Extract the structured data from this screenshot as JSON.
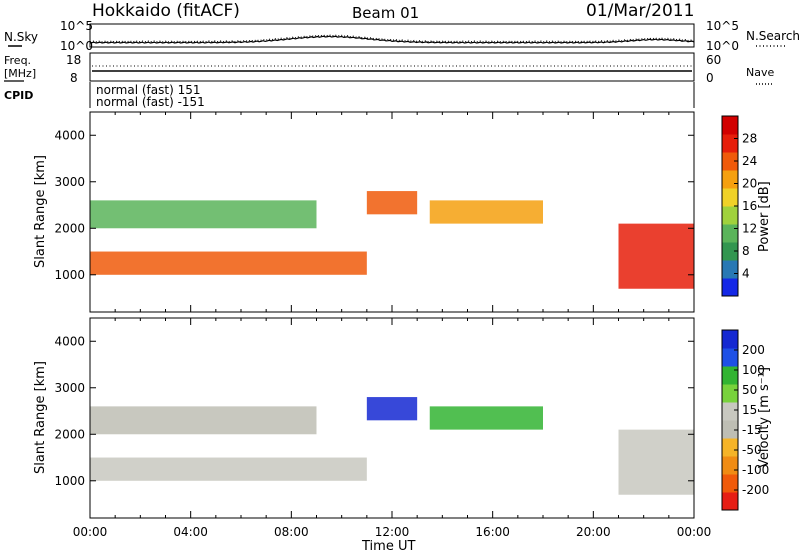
{
  "header": {
    "station": "Hokkaido (fitACF)",
    "beam": "Beam 01",
    "date": "01/Mar/2011"
  },
  "top_panels": {
    "nsky": {
      "label": "N.Sky",
      "right_label": "N.Search",
      "left_ticks": [
        "10^5",
        "10^0"
      ],
      "right_ticks": [
        "10^5",
        "10^0"
      ]
    },
    "freq": {
      "label_line1": "Freq.",
      "label_line2": "[MHz]",
      "right_label": "Nave",
      "left_ticks": [
        "18",
        "8"
      ],
      "right_ticks": [
        "60",
        "0"
      ]
    },
    "cpid": {
      "label": "CPID",
      "entries": [
        "normal (fast) 151",
        "normal (fast) -151"
      ]
    }
  },
  "colors": {
    "power_scale": [
      "#1428e6",
      "#2878b4",
      "#329650",
      "#5ab45a",
      "#a0d23c",
      "#f0d228",
      "#f5a00f",
      "#f05a0a",
      "#e61e0a",
      "#d20000"
    ],
    "velocity_scale": [
      "#1428d2",
      "#1e50e6",
      "#32b432",
      "#78d23c",
      "#c8c8c0",
      "#bebeb4",
      "#f5b428",
      "#f08c14",
      "#f05a0a",
      "#e61e14"
    ]
  },
  "chart_data": [
    {
      "type": "heatmap",
      "name": "power",
      "ylabel": "Slant Range [km]",
      "xlabel": "",
      "yticks": [
        1000,
        2000,
        3000,
        4000
      ],
      "ylim": [
        200,
        4500
      ],
      "xlim": [
        0,
        24
      ],
      "colorbar_label": "Power [dB]",
      "colorbar_ticks": [
        "28",
        "24",
        "20",
        "16",
        "12",
        "8",
        "4"
      ],
      "colorbar_range": [
        0,
        32
      ],
      "features": [
        {
          "t_start": 0,
          "t_end": 11,
          "range_start": 1000,
          "range_end": 1500,
          "power_db": 24
        },
        {
          "t_start": 0,
          "t_end": 9,
          "range_start": 2000,
          "range_end": 2600,
          "power_db": 12
        },
        {
          "t_start": 11,
          "t_end": 13,
          "range_start": 2300,
          "range_end": 2800,
          "power_db": 24
        },
        {
          "t_start": 13.5,
          "t_end": 18,
          "range_start": 2100,
          "range_end": 2600,
          "power_db": 20
        },
        {
          "t_start": 21,
          "t_end": 24,
          "range_start": 700,
          "range_end": 2100,
          "power_db": 28
        }
      ]
    },
    {
      "type": "heatmap",
      "name": "velocity",
      "ylabel": "Slant Range [km]",
      "xlabel": "Time UT",
      "yticks": [
        1000,
        2000,
        3000,
        4000
      ],
      "ylim": [
        200,
        4500
      ],
      "xlim": [
        0,
        24
      ],
      "xticks": [
        "00:00",
        "04:00",
        "08:00",
        "12:00",
        "16:00",
        "20:00",
        "00:00"
      ],
      "colorbar_label": "Velocity [m s⁻¹]",
      "colorbar_ticks": [
        "200",
        "100",
        "50",
        "15",
        "-15",
        "-50",
        "-100",
        "-200"
      ],
      "features": [
        {
          "t_start": 0,
          "t_end": 11,
          "range_start": 1000,
          "range_end": 1500,
          "velocity": 0
        },
        {
          "t_start": 0,
          "t_end": 9,
          "range_start": 2000,
          "range_end": 2600,
          "velocity": -20
        },
        {
          "t_start": 11,
          "t_end": 13,
          "range_start": 2300,
          "range_end": 2800,
          "velocity": 200
        },
        {
          "t_start": 13.5,
          "t_end": 18,
          "range_start": 2100,
          "range_end": 2600,
          "velocity": 50
        },
        {
          "t_start": 21,
          "t_end": 24,
          "range_start": 700,
          "range_end": 2100,
          "velocity": 0
        }
      ]
    }
  ]
}
